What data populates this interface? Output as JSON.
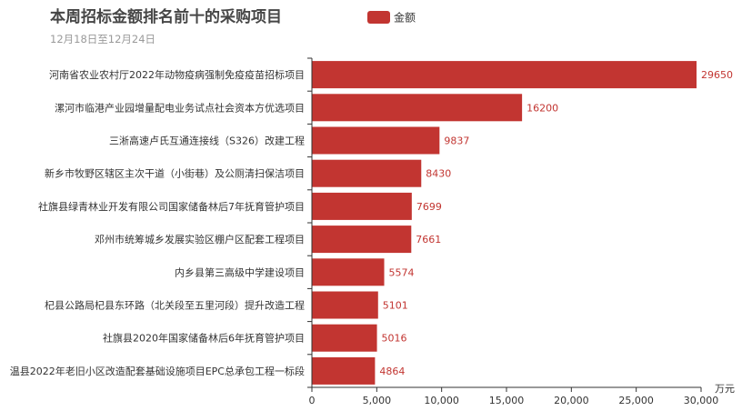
{
  "chart_data": {
    "type": "bar",
    "orientation": "horizontal",
    "title": "本周招标金额排名前十的采购项目",
    "subtitle": "12月18日至12月24日",
    "legend": {
      "label": "金额",
      "placement": "top-center"
    },
    "x_unit": "万元",
    "xlim": [
      0,
      30000
    ],
    "x_ticks": [
      "0",
      "5,000",
      "10,000",
      "15,000",
      "20,000",
      "25,000",
      "30,000"
    ],
    "grid": false,
    "colors": {
      "bar": "#c23531",
      "axis": "#333333",
      "label": "#c23531"
    },
    "categories": [
      "河南省农业农村厅2022年动物疫病强制免疫疫苗招标项目",
      "漯河市临港产业园增量配电业务试点社会资本方优选项目",
      "三淅高速卢氏互通连接线（S326）改建工程",
      "新乡市牧野区辖区主次干道（小街巷）及公厕清扫保洁项目",
      "社旗县绿青林业开发有限公司国家储备林后7年抚育管护项目",
      "邓州市统筹城乡发展实验区棚户区配套工程项目",
      "内乡县第三高级中学建设项目",
      "杞县公路局杞县东环路（北关段至五里河段）提升改造工程",
      "社旗县2020年国家储备林后6年抚育管护项目",
      "温县2022年老旧小区改造配套基础设施项目EPC总承包工程一标段"
    ],
    "series": [
      {
        "name": "金额",
        "values": [
          29650,
          16200,
          9837,
          8430,
          7699,
          7661,
          5574,
          5101,
          5016,
          4864
        ]
      }
    ]
  }
}
